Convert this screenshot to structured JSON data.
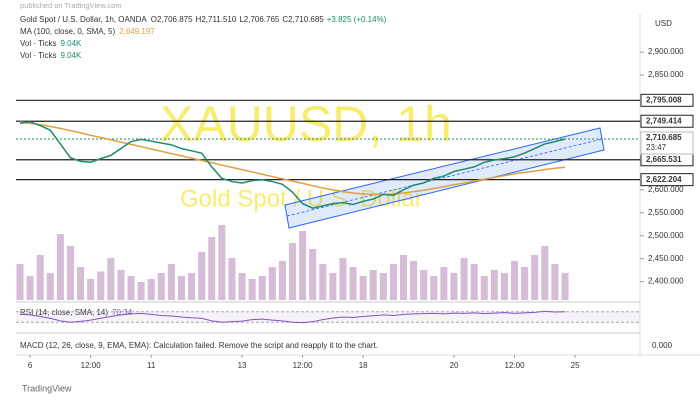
{
  "header": {
    "attribution": "published on TradingView.com",
    "currency": "USD",
    "open_label": "O",
    "open": "2,706.875",
    "high_label": "H",
    "high": "2,711.510",
    "low_label": "L",
    "low": "2,706.765",
    "close_label": "C",
    "close": "2,710.685",
    "change": "+3.825 (+0.14%)",
    "logo": "TradingView"
  },
  "chart_data": {
    "type": "line",
    "watermark": "XAUUSD, 1h",
    "watermark_subtitle": "Gold Spot / U.S. Dollar",
    "ylim": [
      2360,
      2970
    ],
    "yticks": [
      {
        "value": 2900,
        "label": "2,900.000"
      },
      {
        "value": 2850,
        "label": "2,850.000"
      },
      {
        "value": 2600,
        "label": "2,600.000"
      },
      {
        "value": 2550,
        "label": "2,550.000"
      },
      {
        "value": 2500,
        "label": "2,500.000"
      },
      {
        "value": 2450,
        "label": "2,450.000"
      },
      {
        "value": 2400,
        "label": "2,400.000"
      }
    ],
    "levels": [
      {
        "value": 2795.008,
        "label": "2,795.008"
      },
      {
        "value": 2749.414,
        "label": "2,749.414"
      },
      {
        "value": 2665.531,
        "label": "2,665.531"
      },
      {
        "value": 2622.204,
        "label": "2,622.204"
      }
    ],
    "last_price": {
      "value": 2710.685,
      "label": "2,710.685"
    },
    "countdown": "23:47",
    "xticks": [
      {
        "value": 1,
        "label": "6"
      },
      {
        "value": 7,
        "label": "12:00"
      },
      {
        "value": 13,
        "label": "11"
      },
      {
        "value": 22,
        "label": "13"
      },
      {
        "value": 28,
        "label": "12:00"
      },
      {
        "value": 34,
        "label": "18"
      },
      {
        "value": 43,
        "label": "20"
      },
      {
        "value": 49,
        "label": "12:00"
      },
      {
        "value": 55,
        "label": "25"
      }
    ],
    "series": [
      {
        "name": "Gold Spot / U.S. Dollar, 1h, OANDA",
        "color": "#1f8a6e",
        "values": [
          2745,
          2748,
          2740,
          2730,
          2700,
          2670,
          2662,
          2660,
          2668,
          2675,
          2690,
          2705,
          2710,
          2706,
          2702,
          2698,
          2690,
          2685,
          2680,
          2650,
          2625,
          2618,
          2615,
          2620,
          2622,
          2618,
          2612,
          2595,
          2570,
          2560,
          2565,
          2570,
          2572,
          2568,
          2575,
          2580,
          2590,
          2588,
          2600,
          2610,
          2615,
          2625,
          2630,
          2640,
          2645,
          2650,
          2660,
          2665,
          2668,
          2672,
          2680,
          2690,
          2700,
          2705,
          2710.685
        ]
      },
      {
        "name": "MA (100, close, 0, SMA, 5)",
        "color": "#e0a040",
        "value_label": "2,649.197",
        "values": [
          2748,
          2745,
          2742,
          2738,
          2734,
          2729,
          2724,
          2719,
          2714,
          2709,
          2704,
          2699,
          2694,
          2689,
          2684,
          2679,
          2674,
          2669,
          2664,
          2659,
          2654,
          2649,
          2644,
          2639,
          2634,
          2629,
          2624,
          2619,
          2614,
          2609,
          2604,
          2600,
          2596,
          2593,
          2591,
          2590,
          2590,
          2591,
          2593,
          2596,
          2599,
          2603,
          2607,
          2611,
          2615,
          2619,
          2623,
          2627,
          2631,
          2635,
          2638,
          2641,
          2644,
          2647,
          2649.197
        ]
      }
    ],
    "volume": {
      "name": "Vol · Ticks",
      "value_label": "9.04K",
      "color": "#c7a6c9",
      "ylim": [
        0,
        30000
      ],
      "values": [
        12000,
        8000,
        15000,
        9000,
        22000,
        18000,
        11000,
        7000,
        9500,
        14000,
        10000,
        8000,
        6000,
        7000,
        9000,
        12000,
        8000,
        9000,
        16000,
        21000,
        25000,
        14000,
        9000,
        7000,
        8000,
        11000,
        13000,
        19000,
        23000,
        17000,
        12000,
        9000,
        14000,
        11000,
        8000,
        10000,
        9000,
        12000,
        15000,
        13000,
        10000,
        8000,
        11000,
        9000,
        14000,
        12000,
        8000,
        10000,
        9000,
        13000,
        11000,
        15000,
        18000,
        12000,
        9040
      ]
    },
    "rsi": {
      "name": "RSI (14, close, SMA, 14)",
      "value_label": "70.34",
      "color": "#7e57c2",
      "ylim": [
        0,
        100
      ],
      "bands": [
        30,
        70
      ],
      "values": [
        60,
        58,
        52,
        45,
        35,
        30,
        33,
        38,
        45,
        52,
        58,
        62,
        64,
        60,
        56,
        54,
        50,
        47,
        45,
        35,
        30,
        32,
        34,
        40,
        42,
        38,
        35,
        30,
        28,
        32,
        40,
        46,
        50,
        48,
        52,
        55,
        58,
        56,
        60,
        62,
        63,
        64,
        62,
        65,
        64,
        66,
        63,
        65,
        67,
        64,
        66,
        68,
        72,
        69,
        70.34
      ]
    },
    "macd": {
      "name": "MACD (12, 26, close, 9, EMA, EMA)",
      "message": ": Calculation failed. Remove the script and reapply it to the chart.",
      "axis_label": "0.000"
    }
  }
}
